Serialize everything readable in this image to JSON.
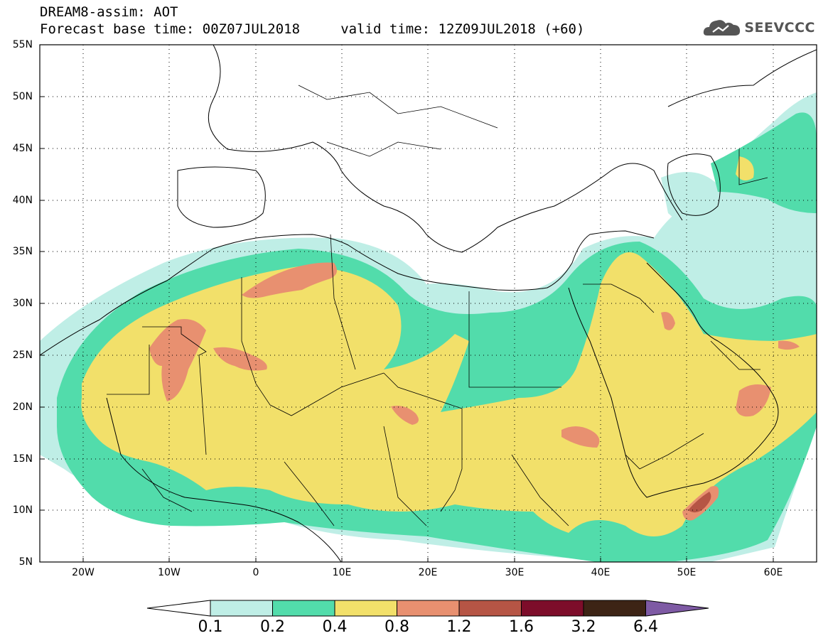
{
  "header": {
    "line1": "DREAM8-assim: AOT",
    "line2": "Forecast base time: 00Z07JUL2018     valid time: 12Z09JUL2018 (+60)"
  },
  "logo": {
    "text": "SEEVCCC",
    "icon": "cloud-logo-icon"
  },
  "map": {
    "lat_labels": [
      "55N",
      "50N",
      "45N",
      "40N",
      "35N",
      "30N",
      "25N",
      "20N",
      "15N",
      "10N",
      "5N"
    ],
    "lon_labels": [
      "20W",
      "10W",
      "0",
      "10E",
      "20E",
      "30E",
      "40E",
      "50E",
      "60E"
    ],
    "grid": true
  },
  "colorbar": {
    "labels": [
      "0.1",
      "0.2",
      "0.4",
      "0.8",
      "1.2",
      "1.6",
      "3.2",
      "6.4"
    ],
    "colors": {
      "low_arrow": "#ffffff",
      "bins": [
        "#bfeee6",
        "#52dcab",
        "#f2e06a",
        "#e89070",
        "#b65545",
        "#7d0d2a",
        "#3d2415"
      ],
      "high_arrow": "#7e5aa4"
    }
  },
  "colors": {
    "level_0_1": "#bfeee6",
    "level_0_2": "#52dcab",
    "level_0_4": "#f2e06a",
    "level_0_8": "#e89070",
    "level_1_2": "#b65545"
  }
}
